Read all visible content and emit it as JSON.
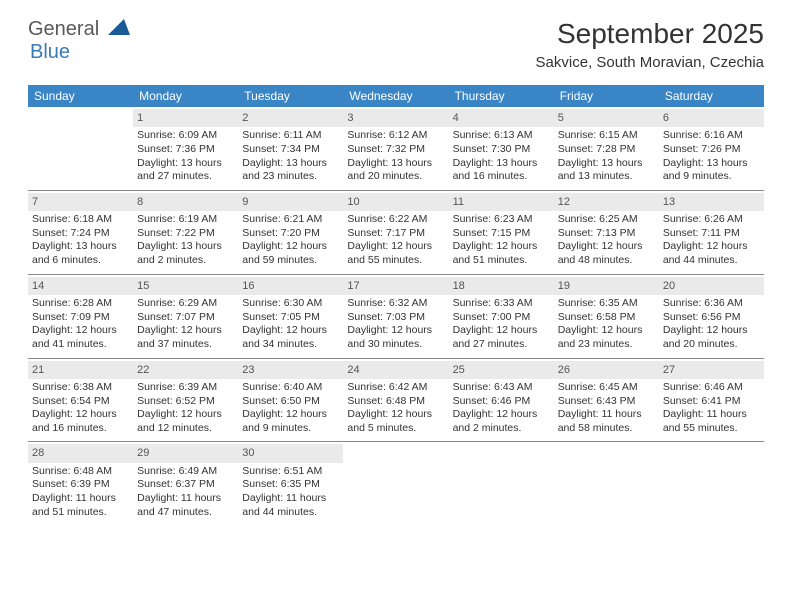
{
  "logo": {
    "text1": "General",
    "text2": "Blue"
  },
  "title": "September 2025",
  "location": "Sakvice, South Moravian, Czechia",
  "colors": {
    "header_bg": "#3a85c6",
    "header_text": "#ffffff",
    "daynum_bg": "#eaeaea",
    "row_border": "#888888",
    "logo_blue": "#3a7ab8",
    "logo_gray": "#5a5a5a"
  },
  "weekdays": [
    "Sunday",
    "Monday",
    "Tuesday",
    "Wednesday",
    "Thursday",
    "Friday",
    "Saturday"
  ],
  "weeks": [
    [
      {
        "blank": true
      },
      {
        "n": "1",
        "sr": "6:09 AM",
        "ss": "7:36 PM",
        "dl": "13 hours and 27 minutes."
      },
      {
        "n": "2",
        "sr": "6:11 AM",
        "ss": "7:34 PM",
        "dl": "13 hours and 23 minutes."
      },
      {
        "n": "3",
        "sr": "6:12 AM",
        "ss": "7:32 PM",
        "dl": "13 hours and 20 minutes."
      },
      {
        "n": "4",
        "sr": "6:13 AM",
        "ss": "7:30 PM",
        "dl": "13 hours and 16 minutes."
      },
      {
        "n": "5",
        "sr": "6:15 AM",
        "ss": "7:28 PM",
        "dl": "13 hours and 13 minutes."
      },
      {
        "n": "6",
        "sr": "6:16 AM",
        "ss": "7:26 PM",
        "dl": "13 hours and 9 minutes."
      }
    ],
    [
      {
        "n": "7",
        "sr": "6:18 AM",
        "ss": "7:24 PM",
        "dl": "13 hours and 6 minutes."
      },
      {
        "n": "8",
        "sr": "6:19 AM",
        "ss": "7:22 PM",
        "dl": "13 hours and 2 minutes."
      },
      {
        "n": "9",
        "sr": "6:21 AM",
        "ss": "7:20 PM",
        "dl": "12 hours and 59 minutes."
      },
      {
        "n": "10",
        "sr": "6:22 AM",
        "ss": "7:17 PM",
        "dl": "12 hours and 55 minutes."
      },
      {
        "n": "11",
        "sr": "6:23 AM",
        "ss": "7:15 PM",
        "dl": "12 hours and 51 minutes."
      },
      {
        "n": "12",
        "sr": "6:25 AM",
        "ss": "7:13 PM",
        "dl": "12 hours and 48 minutes."
      },
      {
        "n": "13",
        "sr": "6:26 AM",
        "ss": "7:11 PM",
        "dl": "12 hours and 44 minutes."
      }
    ],
    [
      {
        "n": "14",
        "sr": "6:28 AM",
        "ss": "7:09 PM",
        "dl": "12 hours and 41 minutes."
      },
      {
        "n": "15",
        "sr": "6:29 AM",
        "ss": "7:07 PM",
        "dl": "12 hours and 37 minutes."
      },
      {
        "n": "16",
        "sr": "6:30 AM",
        "ss": "7:05 PM",
        "dl": "12 hours and 34 minutes."
      },
      {
        "n": "17",
        "sr": "6:32 AM",
        "ss": "7:03 PM",
        "dl": "12 hours and 30 minutes."
      },
      {
        "n": "18",
        "sr": "6:33 AM",
        "ss": "7:00 PM",
        "dl": "12 hours and 27 minutes."
      },
      {
        "n": "19",
        "sr": "6:35 AM",
        "ss": "6:58 PM",
        "dl": "12 hours and 23 minutes."
      },
      {
        "n": "20",
        "sr": "6:36 AM",
        "ss": "6:56 PM",
        "dl": "12 hours and 20 minutes."
      }
    ],
    [
      {
        "n": "21",
        "sr": "6:38 AM",
        "ss": "6:54 PM",
        "dl": "12 hours and 16 minutes."
      },
      {
        "n": "22",
        "sr": "6:39 AM",
        "ss": "6:52 PM",
        "dl": "12 hours and 12 minutes."
      },
      {
        "n": "23",
        "sr": "6:40 AM",
        "ss": "6:50 PM",
        "dl": "12 hours and 9 minutes."
      },
      {
        "n": "24",
        "sr": "6:42 AM",
        "ss": "6:48 PM",
        "dl": "12 hours and 5 minutes."
      },
      {
        "n": "25",
        "sr": "6:43 AM",
        "ss": "6:46 PM",
        "dl": "12 hours and 2 minutes."
      },
      {
        "n": "26",
        "sr": "6:45 AM",
        "ss": "6:43 PM",
        "dl": "11 hours and 58 minutes."
      },
      {
        "n": "27",
        "sr": "6:46 AM",
        "ss": "6:41 PM",
        "dl": "11 hours and 55 minutes."
      }
    ],
    [
      {
        "n": "28",
        "sr": "6:48 AM",
        "ss": "6:39 PM",
        "dl": "11 hours and 51 minutes."
      },
      {
        "n": "29",
        "sr": "6:49 AM",
        "ss": "6:37 PM",
        "dl": "11 hours and 47 minutes."
      },
      {
        "n": "30",
        "sr": "6:51 AM",
        "ss": "6:35 PM",
        "dl": "11 hours and 44 minutes."
      },
      {
        "blank": true
      },
      {
        "blank": true
      },
      {
        "blank": true
      },
      {
        "blank": true
      }
    ]
  ],
  "labels": {
    "sunrise": "Sunrise: ",
    "sunset": "Sunset: ",
    "daylight": "Daylight: "
  }
}
